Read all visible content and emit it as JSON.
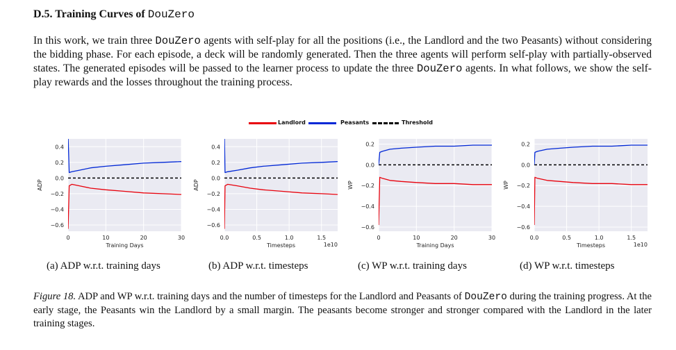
{
  "section": {
    "heading_prefix": "D.5. Training Curves of ",
    "heading_code": "DouZero"
  },
  "paragraph": {
    "p1": "In this work, we train three ",
    "code1": "DouZero",
    "p2": " agents with self-play for all the positions (i.e., the Landlord and the two Peasants) without considering the bidding phase. For each episode, a deck will be randomly generated. Then the three agents will perform self-play with partially-observed states. The generated episodes will be passed to the learner process to update the three ",
    "code2": "DouZero",
    "p3": " agents. In what follows, we show the self-play rewards and the losses throughout the training process."
  },
  "legend": {
    "items": [
      {
        "label": "Landlord",
        "color": "#e8000b",
        "style": "solid"
      },
      {
        "label": "Peasants",
        "color": "#0027d6",
        "style": "solid"
      },
      {
        "label": "Threshold",
        "color": "#000000",
        "style": "dashed"
      }
    ]
  },
  "chart_data": [
    {
      "type": "line",
      "xlabel": "Training Days",
      "ylabel": "ADP",
      "x_ticks": [
        "0",
        "10",
        "20",
        "30"
      ],
      "y_ticks": [
        "0.4",
        "0.2",
        "0.0",
        "−0.2",
        "−0.4",
        "−0.6"
      ],
      "xlim": [
        0,
        30
      ],
      "ylim": [
        -0.68,
        0.5
      ],
      "threshold": 0.0,
      "grid": true,
      "series": [
        {
          "name": "Landlord",
          "x": [
            0,
            0.3,
            1,
            3,
            6,
            10,
            15,
            20,
            25,
            30
          ],
          "y": [
            -0.65,
            -0.1,
            -0.08,
            -0.1,
            -0.13,
            -0.15,
            -0.17,
            -0.19,
            -0.2,
            -0.21
          ]
        },
        {
          "name": "Peasants",
          "x": [
            0,
            0.3,
            1,
            3,
            6,
            10,
            15,
            20,
            25,
            30
          ],
          "y": [
            0.55,
            0.07,
            0.08,
            0.1,
            0.13,
            0.15,
            0.17,
            0.19,
            0.2,
            0.21
          ]
        }
      ],
      "caption": "(a) ADP w.r.t. training days"
    },
    {
      "type": "line",
      "xlabel": "Timesteps",
      "ylabel": "ADP",
      "x_ticks": [
        "0.0",
        "0.5",
        "1.0",
        "1.5"
      ],
      "x_offset_label": "1e10",
      "y_ticks": [
        "0.4",
        "0.2",
        "0.0",
        "−0.2",
        "−0.4",
        "−0.6"
      ],
      "xlim": [
        0,
        1.75
      ],
      "ylim": [
        -0.68,
        0.5
      ],
      "threshold": 0.0,
      "grid": true,
      "series": [
        {
          "name": "Landlord",
          "x": [
            0,
            0.01,
            0.05,
            0.2,
            0.4,
            0.6,
            0.9,
            1.2,
            1.5,
            1.75
          ],
          "y": [
            -0.65,
            -0.1,
            -0.08,
            -0.1,
            -0.13,
            -0.15,
            -0.17,
            -0.19,
            -0.2,
            -0.21
          ]
        },
        {
          "name": "Peasants",
          "x": [
            0,
            0.01,
            0.05,
            0.2,
            0.4,
            0.6,
            0.9,
            1.2,
            1.5,
            1.75
          ],
          "y": [
            0.55,
            0.07,
            0.08,
            0.1,
            0.13,
            0.15,
            0.17,
            0.19,
            0.2,
            0.21
          ]
        }
      ],
      "caption": "(b) ADP w.r.t. timesteps"
    },
    {
      "type": "line",
      "xlabel": "Training Days",
      "ylabel": "WP",
      "x_ticks": [
        "0",
        "10",
        "20",
        "30"
      ],
      "y_ticks": [
        "0.2",
        "0.0",
        "−0.2",
        "−0.4",
        "−0.6"
      ],
      "xlim": [
        0,
        30
      ],
      "ylim": [
        -0.64,
        0.25
      ],
      "threshold": 0.0,
      "grid": true,
      "series": [
        {
          "name": "Landlord",
          "x": [
            0,
            0.3,
            1,
            3,
            6,
            10,
            15,
            20,
            25,
            30
          ],
          "y": [
            -0.58,
            -0.12,
            -0.13,
            -0.15,
            -0.16,
            -0.17,
            -0.18,
            -0.18,
            -0.19,
            -0.19
          ]
        },
        {
          "name": "Peasants",
          "x": [
            0,
            0.3,
            1,
            3,
            6,
            10,
            15,
            20,
            25,
            30
          ],
          "y": [
            0.0,
            0.12,
            0.13,
            0.15,
            0.16,
            0.17,
            0.18,
            0.18,
            0.19,
            0.19
          ]
        }
      ],
      "caption": "(c) WP w.r.t. training days"
    },
    {
      "type": "line",
      "xlabel": "Timesteps",
      "ylabel": "WP",
      "x_ticks": [
        "0.0",
        "0.5",
        "1.0",
        "1.5"
      ],
      "x_offset_label": "1e10",
      "y_ticks": [
        "0.2",
        "0.0",
        "−0.2",
        "−0.4",
        "−0.6"
      ],
      "xlim": [
        0,
        1.75
      ],
      "ylim": [
        -0.64,
        0.25
      ],
      "threshold": 0.0,
      "grid": true,
      "series": [
        {
          "name": "Landlord",
          "x": [
            0,
            0.01,
            0.05,
            0.2,
            0.4,
            0.6,
            0.9,
            1.2,
            1.5,
            1.75
          ],
          "y": [
            -0.58,
            -0.12,
            -0.13,
            -0.15,
            -0.16,
            -0.17,
            -0.18,
            -0.18,
            -0.19,
            -0.19
          ]
        },
        {
          "name": "Peasants",
          "x": [
            0,
            0.01,
            0.05,
            0.2,
            0.4,
            0.6,
            0.9,
            1.2,
            1.5,
            1.75
          ],
          "y": [
            0.0,
            0.12,
            0.13,
            0.15,
            0.16,
            0.17,
            0.18,
            0.18,
            0.19,
            0.19
          ]
        }
      ],
      "caption": "(d) WP w.r.t. timesteps"
    }
  ],
  "figure_caption": {
    "label": "Figure 18.",
    "t1": " ADP and WP w.r.t. training days and the number of timesteps for the Landlord and Peasants of ",
    "code": "DouZero",
    "t2": " during the training progress. At the early stage, the Peasants win the Landlord by a small margin. The peasants become stronger and stronger compared with the Landlord in the later training stages."
  },
  "colors": {
    "landlord": "#e8000b",
    "peasants": "#0027d6",
    "threshold": "#000000",
    "plot_bg": "#eaeaf2",
    "grid": "#ffffff"
  }
}
